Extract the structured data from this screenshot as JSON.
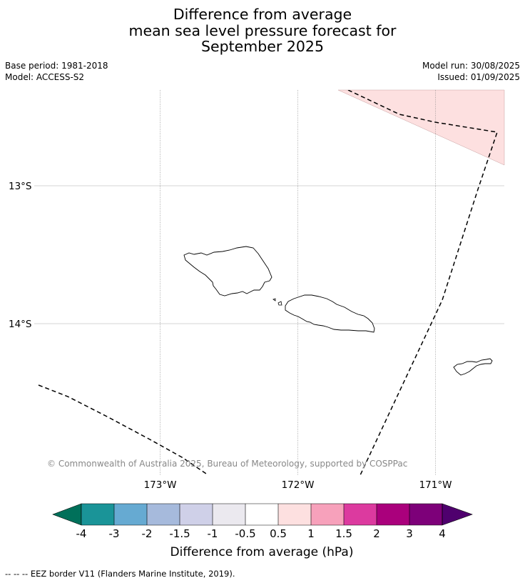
{
  "title": {
    "line1": "Difference from average",
    "line2": "mean sea level pressure forecast for",
    "line3": "September 2025"
  },
  "meta_left": {
    "base_period": "Base period: 1981-2018",
    "model": "Model: ACCESS-S2"
  },
  "meta_right": {
    "model_run": "Model run: 30/08/2025",
    "issued": "Issued: 01/09/2025"
  },
  "map": {
    "lat_labels": [
      "13°S",
      "14°S"
    ],
    "lon_labels": [
      "173°W",
      "172°W",
      "171°W"
    ],
    "copyright": "© Commonwealth of Australia 2025, Bureau of Meteorology, supported by COSPPac",
    "anomaly_fill_color": "#fde0e0"
  },
  "colorbar": {
    "ticks": [
      "-4",
      "-3",
      "-2",
      "-1.5",
      "-1",
      "-0.5",
      "0.5",
      "1",
      "1.5",
      "2",
      "3",
      "4"
    ],
    "colors": [
      "#00705a",
      "#1a9498",
      "#66aad2",
      "#a6badc",
      "#cfd0e8",
      "#ebe9ef",
      "#ffffff",
      "#fde0e0",
      "#f7a1bb",
      "#dc3a9f",
      "#aa007c",
      "#7d0079",
      "#4f006e"
    ],
    "label": "Difference from average (hPa)"
  },
  "footer": {
    "legend": "--  --  -- EEZ border V11 (Flanders Marine Institute, 2019)."
  }
}
